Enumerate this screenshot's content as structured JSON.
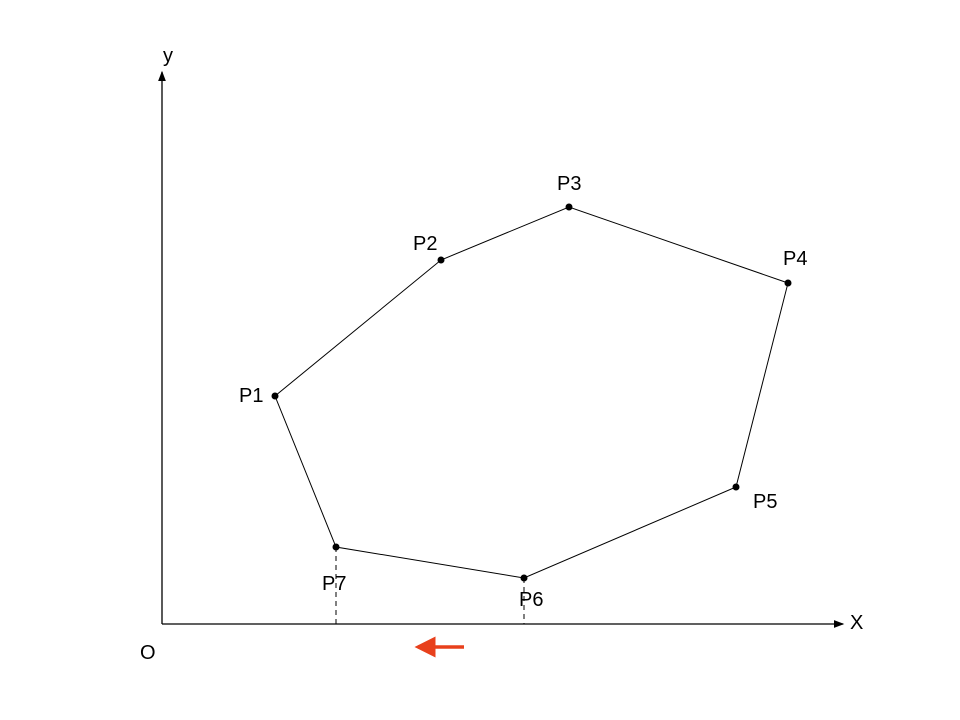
{
  "axes": {
    "x_label": "X",
    "y_label": "y",
    "origin_label": "O"
  },
  "points": [
    {
      "id": "p1",
      "label": "P1"
    },
    {
      "id": "p2",
      "label": "P2"
    },
    {
      "id": "p3",
      "label": "P3"
    },
    {
      "id": "p4",
      "label": "P4"
    },
    {
      "id": "p5",
      "label": "P5"
    },
    {
      "id": "p6",
      "label": "P6"
    },
    {
      "id": "p7",
      "label": "P7"
    }
  ],
  "colors": {
    "line": "#000000",
    "arrow": "#e8401c"
  }
}
